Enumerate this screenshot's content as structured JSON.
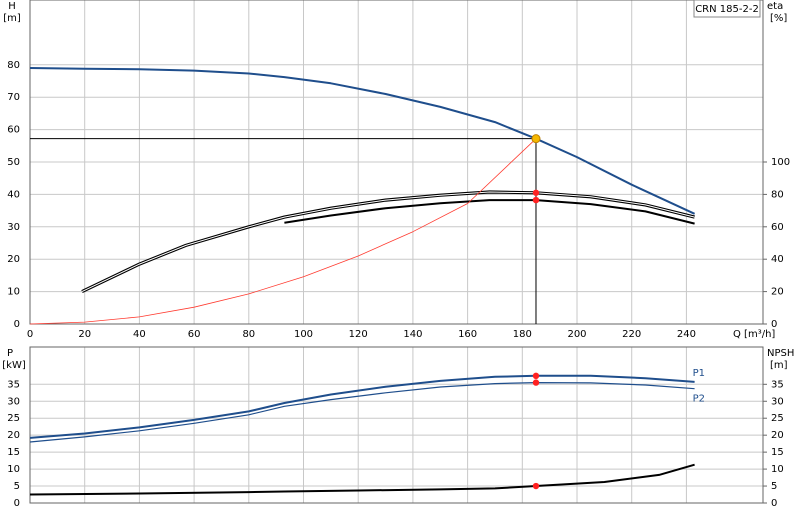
{
  "chart_data": [
    {
      "type": "line",
      "title": "CRN 185-2-2",
      "x_label": "Q [m³/h]",
      "y_label": "H",
      "y_unit": "[m]",
      "y2_label": "eta",
      "y2_unit": "[%]",
      "xlim": [
        0,
        268
      ],
      "xticks": [
        0,
        20,
        40,
        60,
        80,
        100,
        120,
        140,
        160,
        180,
        200,
        220,
        240
      ],
      "ylim": [
        0,
        100
      ],
      "yticks": [
        0,
        10,
        20,
        30,
        40,
        50,
        60,
        70,
        80
      ],
      "y2lim": [
        0,
        200
      ],
      "y2ticks": [
        0,
        20,
        40,
        60,
        80,
        100
      ],
      "grid": true,
      "series": [
        {
          "color": "#1f4e8c",
          "x": [
            0,
            20,
            40,
            60,
            80,
            93,
            110,
            130,
            150,
            170,
            185,
            200,
            220,
            243
          ],
          "values": [
            79,
            78.8,
            78.6,
            78.2,
            77.3,
            76.2,
            74.3,
            71,
            67,
            62.3,
            57.2,
            51.5,
            43,
            34
          ]
        },
        {
          "color": "#000000",
          "axis": "y2",
          "double": true,
          "x": [
            19,
            40,
            57,
            80,
            93,
            110,
            130,
            150,
            168,
            185,
            205,
            225,
            243
          ],
          "values": [
            20,
            37,
            48.5,
            60,
            66,
            71.5,
            76.5,
            79.5,
            81.5,
            81,
            78.5,
            73.5,
            66
          ]
        },
        {
          "color": "#000000",
          "axis": "y2",
          "x": [
            93,
            110,
            130,
            150,
            168,
            185,
            205,
            225,
            243
          ],
          "values": [
            62.5,
            67,
            71.5,
            74.5,
            76.5,
            76.5,
            74,
            69.5,
            62
          ]
        },
        {
          "color": "#ff3b30",
          "x": [
            0,
            20,
            40,
            60,
            80,
            100,
            120,
            140,
            160,
            185
          ],
          "values": [
            0,
            0.6,
            2.2,
            5.2,
            9.3,
            14.6,
            21,
            28.5,
            37.2,
            57.2
          ]
        }
      ],
      "points": [
        {
          "x": 185,
          "y": 57.2,
          "color": "#f5b800",
          "guides": true
        },
        {
          "x": 185,
          "y": 81,
          "axis": "y2",
          "color": "#ff2020"
        },
        {
          "x": 185,
          "y": 76.5,
          "axis": "y2",
          "color": "#ff2020"
        }
      ]
    },
    {
      "type": "line",
      "y_label": "P",
      "y_unit": "[kW]",
      "y2_label": "NPSH",
      "y2_unit": "[m]",
      "ylim": [
        0,
        46
      ],
      "yticks": [
        0,
        5,
        10,
        15,
        20,
        25,
        30,
        35
      ],
      "y2lim": [
        0,
        46
      ],
      "y2ticks": [
        0,
        5,
        10,
        15,
        20,
        25,
        30,
        35
      ],
      "grid": true,
      "series": [
        {
          "name": "P1",
          "color": "#1f4e8c",
          "x": [
            0,
            20,
            40,
            60,
            80,
            93,
            110,
            130,
            150,
            170,
            185,
            205,
            225,
            243
          ],
          "values": [
            19.2,
            20.5,
            22.3,
            24.5,
            27,
            29.5,
            32,
            34.3,
            36,
            37.2,
            37.5,
            37.5,
            36.8,
            35.7
          ]
        },
        {
          "name": "P2",
          "color": "#1f4e8c",
          "x": [
            0,
            20,
            40,
            60,
            80,
            93,
            110,
            130,
            150,
            170,
            185,
            205,
            225,
            243
          ],
          "values": [
            18,
            19.5,
            21.3,
            23.5,
            26,
            28.5,
            30.5,
            32.5,
            34.2,
            35.2,
            35.5,
            35.4,
            34.8,
            33.7
          ]
        },
        {
          "color": "#000000",
          "axis": "y2",
          "x": [
            0,
            40,
            80,
            93,
            120,
            150,
            170,
            185,
            210,
            230,
            243
          ],
          "values": [
            2.5,
            2.8,
            3.2,
            3.4,
            3.7,
            4,
            4.3,
            5,
            6.2,
            8.3,
            11.3
          ]
        }
      ],
      "points": [
        {
          "x": 185,
          "y": 37.5,
          "color": "#ff2020"
        },
        {
          "x": 185,
          "y": 35.5,
          "color": "#ff2020"
        },
        {
          "x": 185,
          "y": 5,
          "axis": "y2",
          "color": "#ff2020"
        }
      ]
    }
  ]
}
